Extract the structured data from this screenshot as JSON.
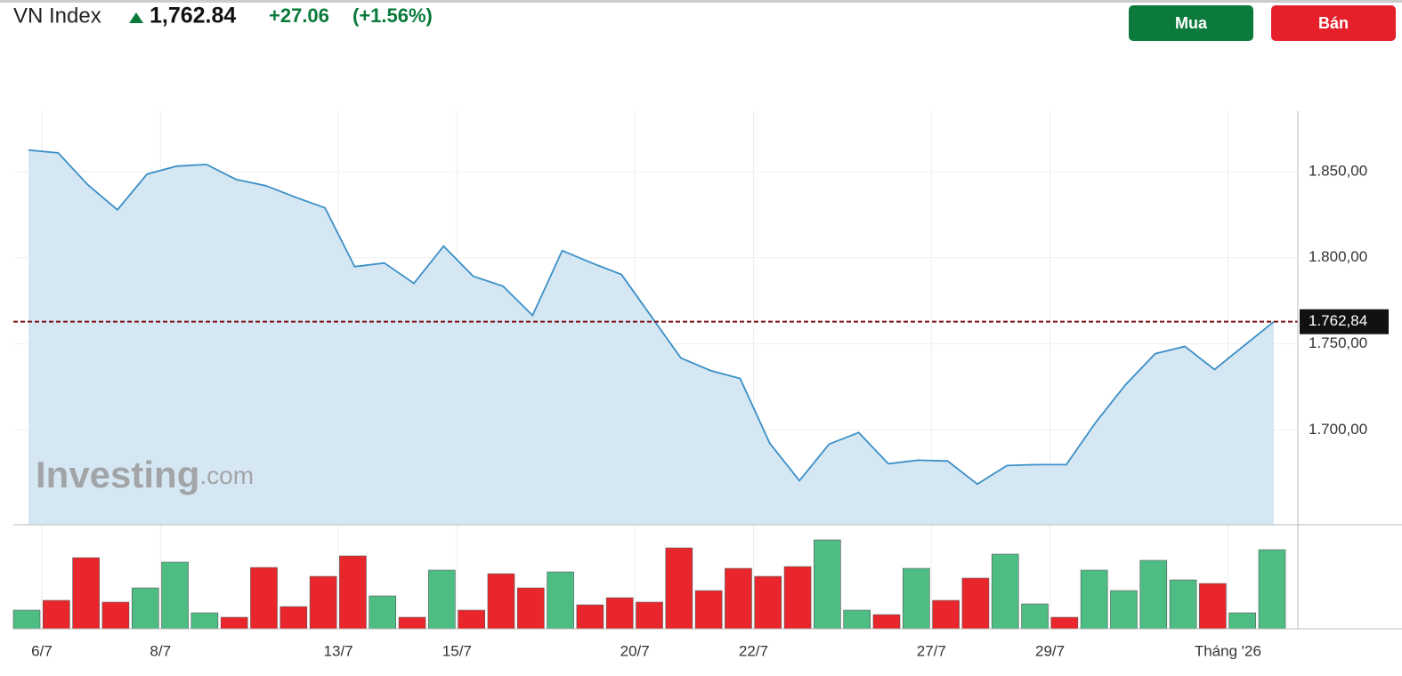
{
  "header": {
    "title": "VN Index",
    "price": "1,762.84",
    "change": "+27.06",
    "change_pct": "(+1.56%)"
  },
  "buttons": {
    "buy": "Mua",
    "sell": "Bán"
  },
  "watermark": {
    "brand": "Investing",
    "suffix": ".com"
  },
  "chart_data": [
    {
      "type": "area",
      "color": "#3a8fc6",
      "fill": "#d6e7f4",
      "categories": [
        "6/7",
        null,
        null,
        null,
        "8/7",
        null,
        null,
        null,
        null,
        null,
        "13/7",
        null,
        null,
        null,
        "15/7",
        null,
        null,
        null,
        null,
        null,
        "20/7",
        null,
        null,
        null,
        "22/7",
        null,
        null,
        null,
        null,
        null,
        "27/7",
        null,
        null,
        null,
        "29/7",
        null,
        null,
        null,
        null,
        null,
        "Tháng '26",
        null,
        null
      ],
      "values": [
        1862.4,
        1860.8,
        1842.3,
        1827.8,
        1848.5,
        1853.1,
        1854.1,
        1845.4,
        1841.8,
        1835.1,
        1828.9,
        1794.8,
        1796.9,
        1785.1,
        1806.7,
        1789.2,
        1783.5,
        1766.5,
        1804.1,
        1796.9,
        1790.2,
        1766,
        1741.8,
        1734.5,
        1729.9,
        1692.3,
        1670.6,
        1691.8,
        1698.5,
        1680.4,
        1682.5,
        1682,
        1668.6,
        1679.4,
        1679.9,
        1679.9,
        1704.6,
        1726.3,
        1744.3,
        1748.5,
        1735.1,
        1749,
        1762.84
      ],
      "ylim": [
        1645,
        1885
      ],
      "yticks": [
        {
          "value": 1700,
          "label": "1.700,00"
        },
        {
          "value": 1750,
          "label": "1.750,00"
        },
        {
          "value": 1800,
          "label": "1.800,00"
        },
        {
          "value": 1850,
          "label": "1.850,00"
        }
      ],
      "last_value": {
        "value": 1762.84,
        "label": "1.762,84"
      }
    },
    {
      "type": "bar",
      "values": [
        21,
        32,
        80,
        30,
        46,
        75,
        18,
        13,
        69,
        25,
        59,
        82,
        37,
        13,
        66,
        21,
        62,
        46,
        64,
        27,
        35,
        30,
        91,
        43,
        68,
        59,
        70,
        100,
        21,
        16,
        68,
        32,
        57,
        84,
        28,
        13,
        66,
        43,
        77,
        55,
        51,
        18,
        89
      ],
      "colors": [
        "#4dbd84",
        "#e8262b",
        "#e8262b",
        "#e8262b",
        "#4dbd84",
        "#4dbd84",
        "#4dbd84",
        "#e8262b",
        "#e8262b",
        "#e8262b",
        "#e8262b",
        "#e8262b",
        "#4dbd84",
        "#e8262b",
        "#4dbd84",
        "#e8262b",
        "#e8262b",
        "#e8262b",
        "#4dbd84",
        "#e8262b",
        "#e8262b",
        "#e8262b",
        "#e8262b",
        "#e8262b",
        "#e8262b",
        "#e8262b",
        "#e8262b",
        "#4dbd84",
        "#4dbd84",
        "#e8262b",
        "#4dbd84",
        "#e8262b",
        "#e8262b",
        "#4dbd84",
        "#4dbd84",
        "#e8262b",
        "#4dbd84",
        "#4dbd84",
        "#4dbd84",
        "#4dbd84",
        "#e8262b",
        "#4dbd84",
        "#4dbd84"
      ]
    }
  ]
}
